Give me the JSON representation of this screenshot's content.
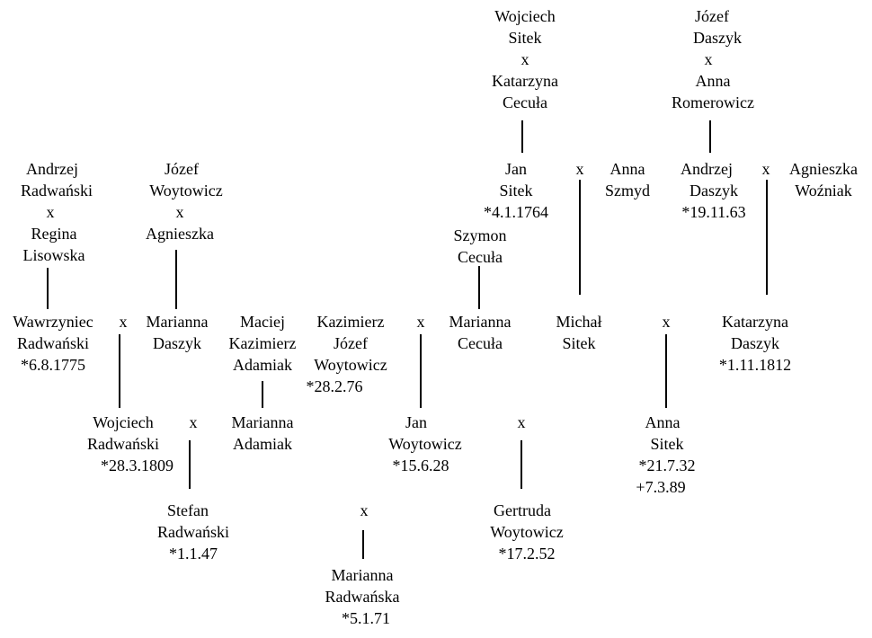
{
  "people": {
    "wojciech_sitek": {
      "lines": [
        "Wojciech",
        "Sitek"
      ]
    },
    "katarzyna_cecula": {
      "lines": [
        "Katarzyna",
        "Cecuła"
      ]
    },
    "jozef_daszyk": {
      "lines": [
        "Józef",
        "Daszyk"
      ]
    },
    "anna_romerowicz": {
      "lines": [
        "Anna",
        "Romerowicz"
      ]
    },
    "andrzej_radwanski": {
      "lines": [
        "Andrzej",
        "Radwański"
      ]
    },
    "regina_lisowska": {
      "lines": [
        "Regina",
        "Lisowska"
      ]
    },
    "jozef_woytowicz": {
      "lines": [
        "Józef",
        "Woytowicz"
      ]
    },
    "agnieszka": {
      "lines": [
        "Agnieszka"
      ]
    },
    "jan_sitek": {
      "lines": [
        "Jan",
        "Sitek",
        "*4.1.1764"
      ]
    },
    "anna_szmyd": {
      "lines": [
        "Anna",
        "Szmyd"
      ]
    },
    "andrzej_daszyk": {
      "lines": [
        "Andrzej",
        "Daszyk",
        "*19.11.63"
      ]
    },
    "agnieszka_wozniak": {
      "lines": [
        "Agnieszka",
        "Woźniak"
      ]
    },
    "szymon_cecula": {
      "lines": [
        "Szymon",
        "Cecuła"
      ]
    },
    "wawrzyniec_radwanski": {
      "lines": [
        "Wawrzyniec",
        "Radwański",
        "*6.8.1775"
      ]
    },
    "marianna_daszyk": {
      "lines": [
        "Marianna",
        "Daszyk"
      ]
    },
    "maciej_kazimierz_adamiak": {
      "lines": [
        "Maciej",
        "Kazimierz",
        "Adamiak"
      ]
    },
    "kazimierz_jozef_woytowicz": {
      "lines": [
        "Kazimierz",
        "Józef",
        "Woytowicz",
        "*28.2.76"
      ]
    },
    "marianna_cecula": {
      "lines": [
        "Marianna",
        "Cecuła"
      ]
    },
    "michal_sitek": {
      "lines": [
        "Michał",
        "Sitek"
      ]
    },
    "katarzyna_daszyk": {
      "lines": [
        "Katarzyna",
        "Daszyk",
        "*1.11.1812"
      ]
    },
    "wojciech_radwanski": {
      "lines": [
        "Wojciech",
        "Radwański",
        "*28.3.1809"
      ]
    },
    "marianna_adamiak": {
      "lines": [
        "Marianna",
        "Adamiak"
      ]
    },
    "jan_woytowicz": {
      "lines": [
        "Jan",
        "Woytowicz",
        "*15.6.28"
      ]
    },
    "anna_sitek": {
      "lines": [
        "Anna",
        "Sitek",
        "*21.7.32",
        "+7.3.89"
      ]
    },
    "stefan_radwanski": {
      "lines": [
        "Stefan",
        "Radwański",
        "*1.1.47"
      ]
    },
    "gertruda_woytowicz": {
      "lines": [
        "Gertruda",
        "Woytowicz",
        "*17.2.52"
      ]
    },
    "marianna_radwanska": {
      "lines": [
        "Marianna",
        "Radwańska",
        "*5.1.71"
      ]
    }
  },
  "marriage_symbol": "x"
}
